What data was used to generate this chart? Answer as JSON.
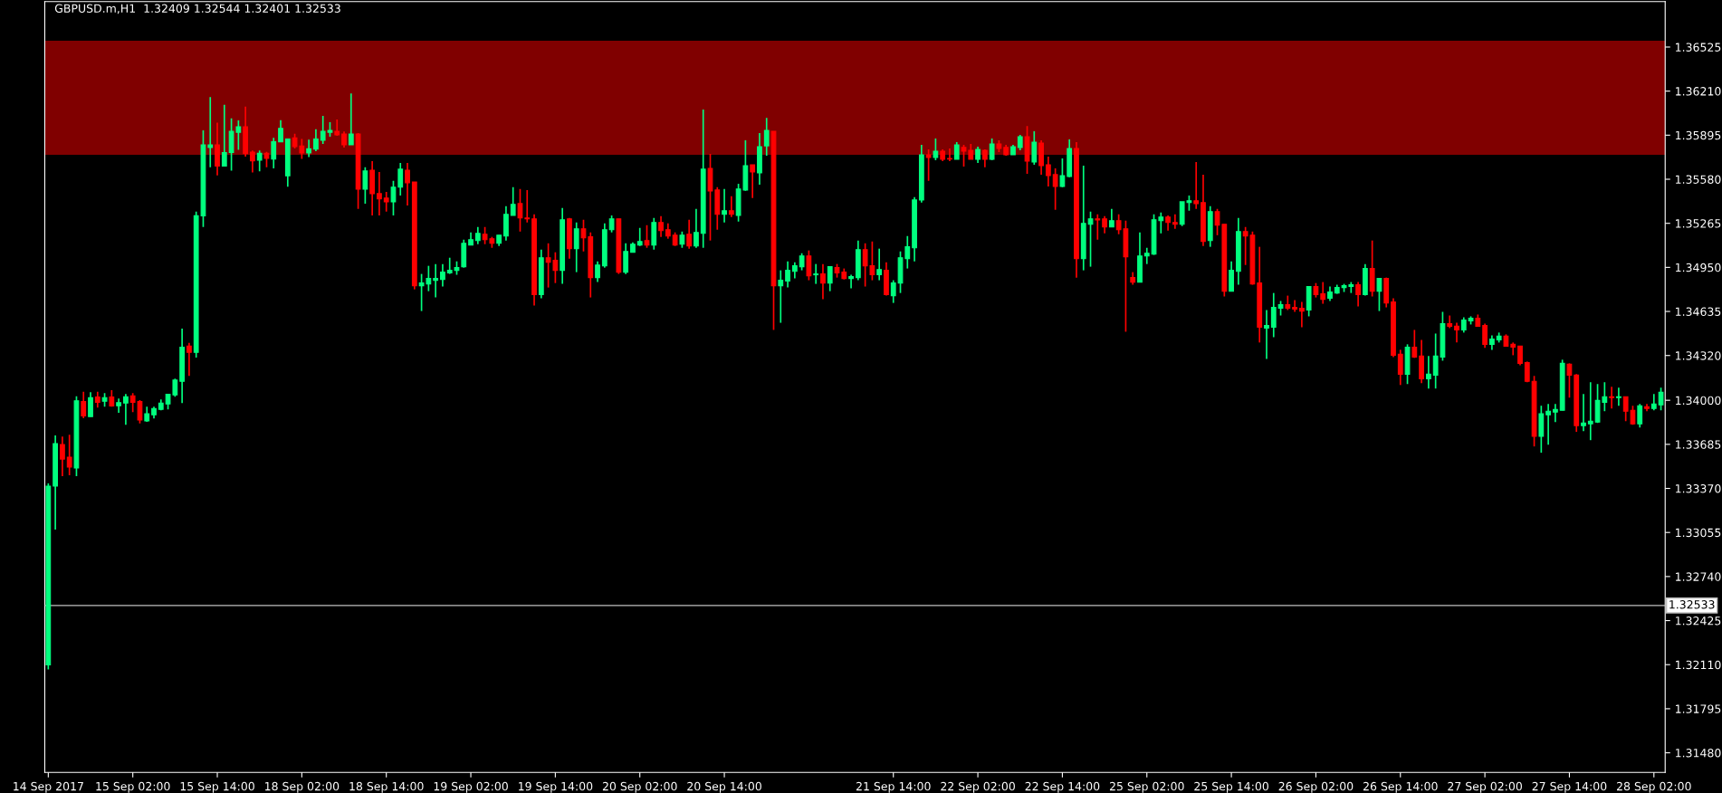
{
  "chart_data": {
    "type": "candlestick",
    "title": "GBPUSD.m,H1  1.32409 1.32544 1.32401 1.32533",
    "categories": [
      "14 Sep 2017",
      null,
      null,
      null,
      null,
      null,
      null,
      null,
      null,
      null,
      null,
      null,
      "15 Sep 02:00",
      null,
      null,
      null,
      null,
      null,
      null,
      null,
      null,
      null,
      null,
      null,
      "15 Sep 14:00",
      null,
      null,
      null,
      null,
      null,
      null,
      null,
      null,
      null,
      null,
      null,
      "18 Sep 02:00",
      null,
      null,
      null,
      null,
      null,
      null,
      null,
      null,
      null,
      null,
      null,
      "18 Sep 14:00",
      null,
      null,
      null,
      null,
      null,
      null,
      null,
      null,
      null,
      null,
      null,
      "19 Sep 02:00",
      null,
      null,
      null,
      null,
      null,
      null,
      null,
      null,
      null,
      null,
      null,
      "19 Sep 14:00",
      null,
      null,
      null,
      null,
      null,
      null,
      null,
      null,
      null,
      null,
      null,
      "20 Sep 02:00",
      null,
      null,
      null,
      null,
      null,
      null,
      null,
      null,
      null,
      null,
      null,
      "20 Sep 14:00",
      null,
      null,
      null,
      null,
      null,
      null,
      null,
      null,
      null,
      null,
      null,
      null,
      null,
      null,
      null,
      null,
      null,
      null,
      null,
      null,
      null,
      null,
      null,
      "21 Sep 14:00",
      null,
      null,
      null,
      null,
      null,
      null,
      null,
      null,
      null,
      null,
      null,
      "22 Sep 02:00",
      null,
      null,
      null,
      null,
      null,
      null,
      null,
      null,
      null,
      null,
      null,
      "22 Sep 14:00",
      null,
      null,
      null,
      null,
      null,
      null,
      null,
      null,
      null,
      null,
      null,
      "25 Sep 02:00",
      null,
      null,
      null,
      null,
      null,
      null,
      null,
      null,
      null,
      null,
      null,
      "25 Sep 14:00",
      null,
      null,
      null,
      null,
      null,
      null,
      null,
      null,
      null,
      null,
      null,
      "26 Sep 02:00",
      null,
      null,
      null,
      null,
      null,
      null,
      null,
      null,
      null,
      null,
      null,
      "26 Sep 14:00",
      null,
      null,
      null,
      null,
      null,
      null,
      null,
      null,
      null,
      null,
      null,
      "27 Sep 02:00",
      null,
      null,
      null,
      null,
      null,
      null,
      null,
      null,
      null,
      null,
      null,
      "27 Sep 14:00",
      null,
      null,
      null,
      null,
      null,
      null,
      null,
      null,
      null,
      null,
      null,
      "28 Sep 02:00",
      null
    ],
    "ohlc": [
      [
        1.32108,
        1.33406,
        1.32076,
        1.33386
      ],
      [
        1.33386,
        1.33748,
        1.33076,
        1.3369
      ],
      [
        1.33683,
        1.33741,
        1.33457,
        1.3358
      ],
      [
        1.33593,
        1.33754,
        1.33464,
        1.33522
      ],
      [
        1.33516,
        1.34028,
        1.33457,
        1.33996
      ],
      [
        1.33991,
        1.34061,
        1.33872,
        1.33888
      ],
      [
        1.33883,
        1.34057,
        1.33883,
        1.34018
      ],
      [
        1.34024,
        1.34061,
        1.33947,
        1.33986
      ],
      [
        1.33993,
        1.34051,
        1.33954,
        1.34019
      ],
      [
        1.34024,
        1.34072,
        1.33954,
        1.33959
      ],
      [
        1.33961,
        1.34012,
        1.3391,
        1.33983
      ],
      [
        1.3398,
        1.34045,
        1.33825,
        1.34025
      ],
      [
        1.34032,
        1.34051,
        1.33915,
        1.33986
      ],
      [
        1.33991,
        1.34001,
        1.33835,
        1.33859
      ],
      [
        1.33853,
        1.33954,
        1.33846,
        1.33903
      ],
      [
        1.33896,
        1.33954,
        1.3387,
        1.33941
      ],
      [
        1.33935,
        1.34006,
        1.33928,
        1.3398
      ],
      [
        1.33974,
        1.34045,
        1.33935,
        1.34042
      ],
      [
        1.34038,
        1.34154,
        1.34025,
        1.34144
      ],
      [
        1.34135,
        1.34512,
        1.3398,
        1.3438
      ],
      [
        1.34387,
        1.34411,
        1.34174,
        1.34343
      ],
      [
        1.34342,
        1.35348,
        1.34305,
        1.35319
      ],
      [
        1.35319,
        1.35929,
        1.35239,
        1.35825
      ],
      [
        1.35807,
        1.36168,
        1.35665,
        1.35825
      ],
      [
        1.35825,
        1.35985,
        1.35607,
        1.35674
      ],
      [
        1.35674,
        1.36112,
        1.35674,
        1.35771
      ],
      [
        1.35771,
        1.36016,
        1.35642,
        1.35922
      ],
      [
        1.35916,
        1.36,
        1.3579,
        1.35955
      ],
      [
        1.35955,
        1.36099,
        1.35742,
        1.35763
      ],
      [
        1.35774,
        1.35785,
        1.35628,
        1.35712
      ],
      [
        1.35717,
        1.35785,
        1.35637,
        1.35766
      ],
      [
        1.35766,
        1.35776,
        1.35665,
        1.3573
      ],
      [
        1.35725,
        1.35876,
        1.35658,
        1.35849
      ],
      [
        1.35847,
        1.36002,
        1.35847,
        1.35944
      ],
      [
        1.35604,
        1.35868,
        1.35526,
        1.35868
      ],
      [
        1.35876,
        1.35905,
        1.358,
        1.35814
      ],
      [
        1.35817,
        1.35868,
        1.35725,
        1.35768
      ],
      [
        1.35768,
        1.35863,
        1.35739,
        1.35798
      ],
      [
        1.35795,
        1.35938,
        1.35781,
        1.35868
      ],
      [
        1.35858,
        1.36033,
        1.35832,
        1.35923
      ],
      [
        1.35916,
        1.35987,
        1.35884,
        1.35929
      ],
      [
        1.35923,
        1.36007,
        1.3589,
        1.35897
      ],
      [
        1.35903,
        1.35921,
        1.35807,
        1.35826
      ],
      [
        1.35826,
        1.36194,
        1.35826,
        1.35903
      ],
      [
        1.35903,
        1.3591,
        1.35368,
        1.3551
      ],
      [
        1.3551,
        1.35666,
        1.35406,
        1.35639
      ],
      [
        1.35645,
        1.3571,
        1.35322,
        1.35477
      ],
      [
        1.35477,
        1.35632,
        1.35322,
        1.35439
      ],
      [
        1.35445,
        1.3549,
        1.35348,
        1.35419
      ],
      [
        1.35419,
        1.35568,
        1.35322,
        1.35523
      ],
      [
        1.35523,
        1.35697,
        1.35464,
        1.35652
      ],
      [
        1.35645,
        1.35697,
        1.35393,
        1.35555
      ],
      [
        1.35561,
        1.35561,
        1.34793,
        1.34819
      ],
      [
        1.34819,
        1.34903,
        1.34638,
        1.34838
      ],
      [
        1.34832,
        1.34961,
        1.3478,
        1.34871
      ],
      [
        1.34858,
        1.34974,
        1.34735,
        1.34871
      ],
      [
        1.34864,
        1.34974,
        1.34813,
        1.34916
      ],
      [
        1.3491,
        1.35019,
        1.34903,
        1.34929
      ],
      [
        1.34929,
        1.34993,
        1.34897,
        1.34948
      ],
      [
        1.34955,
        1.35148,
        1.34948,
        1.35122
      ],
      [
        1.3511,
        1.352,
        1.3511,
        1.35148
      ],
      [
        1.35142,
        1.35239,
        1.35116,
        1.35193
      ],
      [
        1.35187,
        1.35239,
        1.35116,
        1.35148
      ],
      [
        1.35155,
        1.35168,
        1.3509,
        1.35122
      ],
      [
        1.35122,
        1.3518,
        1.35103,
        1.3518
      ],
      [
        1.35174,
        1.35387,
        1.35142,
        1.35329
      ],
      [
        1.35322,
        1.35523,
        1.35322,
        1.354
      ],
      [
        1.35406,
        1.3551,
        1.35206,
        1.35303
      ],
      [
        1.35303,
        1.35503,
        1.35271,
        1.35297
      ],
      [
        1.35297,
        1.35329,
        1.34677,
        1.34755
      ],
      [
        1.34755,
        1.35077,
        1.34729,
        1.35019
      ],
      [
        1.35019,
        1.35122,
        1.34806,
        1.34987
      ],
      [
        1.35,
        1.35058,
        1.34838,
        1.34929
      ],
      [
        1.34929,
        1.35374,
        1.34832,
        1.3529
      ],
      [
        1.35297,
        1.35303,
        1.35013,
        1.35084
      ],
      [
        1.35084,
        1.35271,
        1.34916,
        1.35226
      ],
      [
        1.35226,
        1.3529,
        1.35064,
        1.35161
      ],
      [
        1.35168,
        1.352,
        1.34735,
        1.34877
      ],
      [
        1.34877,
        1.34993,
        1.34845,
        1.34967
      ],
      [
        1.34961,
        1.35264,
        1.34948,
        1.35219
      ],
      [
        1.35219,
        1.35322,
        1.352,
        1.35297
      ],
      [
        1.35297,
        1.35297,
        1.34903,
        1.34916
      ],
      [
        1.34916,
        1.35122,
        1.34903,
        1.35064
      ],
      [
        1.35058,
        1.35129,
        1.35058,
        1.35116
      ],
      [
        1.3511,
        1.35232,
        1.35103,
        1.35135
      ],
      [
        1.35142,
        1.35252,
        1.3509,
        1.3511
      ],
      [
        1.3511,
        1.35303,
        1.35077,
        1.35271
      ],
      [
        1.35271,
        1.35316,
        1.35168,
        1.35213
      ],
      [
        1.35219,
        1.35264,
        1.35155,
        1.35174
      ],
      [
        1.3518,
        1.352,
        1.35103,
        1.3511
      ],
      [
        1.35116,
        1.35206,
        1.3509,
        1.3518
      ],
      [
        1.35187,
        1.3529,
        1.35084,
        1.35103
      ],
      [
        1.35103,
        1.35368,
        1.3509,
        1.352
      ],
      [
        1.35193,
        1.36078,
        1.3509,
        1.35652
      ],
      [
        1.35658,
        1.35761,
        1.35142,
        1.35497
      ],
      [
        1.35503,
        1.35523,
        1.35219,
        1.35329
      ],
      [
        1.35329,
        1.3551,
        1.35271,
        1.35355
      ],
      [
        1.35355,
        1.35458,
        1.3531,
        1.35329
      ],
      [
        1.35322,
        1.35548,
        1.35277,
        1.3551
      ],
      [
        1.35503,
        1.35858,
        1.35497,
        1.35677
      ],
      [
        1.35684,
        1.35684,
        1.35445,
        1.35632
      ],
      [
        1.35626,
        1.3591,
        1.35542,
        1.35813
      ],
      [
        1.35819,
        1.36019,
        1.35748,
        1.35929
      ],
      [
        1.35923,
        1.35923,
        1.34503,
        1.34819
      ],
      [
        1.34819,
        1.34929,
        1.34554,
        1.34858
      ],
      [
        1.34852,
        1.34993,
        1.34806,
        1.34929
      ],
      [
        1.34922,
        1.34987,
        1.34871,
        1.34961
      ],
      [
        1.34955,
        1.35051,
        1.34929,
        1.35032
      ],
      [
        1.35032,
        1.35071,
        1.34858,
        1.3489
      ],
      [
        1.34897,
        1.34974,
        1.34832,
        1.34903
      ],
      [
        1.34903,
        1.34974,
        1.34722,
        1.34838
      ],
      [
        1.34838,
        1.34955,
        1.3478,
        1.34955
      ],
      [
        1.34948,
        1.34974,
        1.34877,
        1.3491
      ],
      [
        1.34916,
        1.34942,
        1.34864,
        1.34871
      ],
      [
        1.34871,
        1.34897,
        1.348,
        1.34884
      ],
      [
        1.34877,
        1.35142,
        1.34858,
        1.35077
      ],
      [
        1.35077,
        1.35122,
        1.34813,
        1.34961
      ],
      [
        1.34961,
        1.35135,
        1.34858,
        1.34897
      ],
      [
        1.34897,
        1.35084,
        1.34858,
        1.34935
      ],
      [
        1.34929,
        1.34987,
        1.34748,
        1.34755
      ],
      [
        1.34748,
        1.34858,
        1.34696,
        1.34838
      ],
      [
        1.34838,
        1.35064,
        1.34767,
        1.35019
      ],
      [
        1.35013,
        1.35174,
        1.34942,
        1.35097
      ],
      [
        1.3509,
        1.35452,
        1.34993,
        1.35432
      ],
      [
        1.35432,
        1.35826,
        1.35413,
        1.35755
      ],
      [
        1.35755,
        1.35794,
        1.35568,
        1.35735
      ],
      [
        1.35735,
        1.35871,
        1.35716,
        1.35781
      ],
      [
        1.35781,
        1.35794,
        1.3571,
        1.35723
      ],
      [
        1.35729,
        1.358,
        1.3571,
        1.35725
      ],
      [
        1.35723,
        1.35845,
        1.35723,
        1.35826
      ],
      [
        1.35807,
        1.35826,
        1.35671,
        1.35781
      ],
      [
        1.35787,
        1.35832,
        1.35723,
        1.35723
      ],
      [
        1.35723,
        1.35813,
        1.35697,
        1.35794
      ],
      [
        1.35787,
        1.35794,
        1.35665,
        1.35723
      ],
      [
        1.35723,
        1.35871,
        1.35716,
        1.35832
      ],
      [
        1.35832,
        1.35858,
        1.35774,
        1.358
      ],
      [
        1.35807,
        1.35826,
        1.35748,
        1.35755
      ],
      [
        1.35755,
        1.35826,
        1.35755,
        1.35813
      ],
      [
        1.35807,
        1.35897,
        1.35787,
        1.35884
      ],
      [
        1.35884,
        1.35961,
        1.35619,
        1.3571
      ],
      [
        1.35703,
        1.35923,
        1.35684,
        1.35845
      ],
      [
        1.35839,
        1.35858,
        1.35613,
        1.35677
      ],
      [
        1.35684,
        1.35742,
        1.35529,
        1.35606
      ],
      [
        1.35613,
        1.35658,
        1.35361,
        1.35529
      ],
      [
        1.35529,
        1.35729,
        1.35523,
        1.35606
      ],
      [
        1.356,
        1.35865,
        1.35594,
        1.358
      ],
      [
        1.358,
        1.35845,
        1.34877,
        1.35013
      ],
      [
        1.35013,
        1.35677,
        1.34929,
        1.35264
      ],
      [
        1.35258,
        1.35348,
        1.34955,
        1.35297
      ],
      [
        1.35297,
        1.35329,
        1.35148,
        1.3529
      ],
      [
        1.35297,
        1.35316,
        1.35193,
        1.35239
      ],
      [
        1.35239,
        1.35368,
        1.35239,
        1.35284
      ],
      [
        1.35284,
        1.35329,
        1.35187,
        1.35219
      ],
      [
        1.35226,
        1.35284,
        1.3449,
        1.35026
      ],
      [
        1.34877,
        1.34916,
        1.34826,
        1.34845
      ],
      [
        1.34845,
        1.352,
        1.34845,
        1.35032
      ],
      [
        1.35032,
        1.3509,
        1.34974,
        1.35051
      ],
      [
        1.35045,
        1.35329,
        1.35039,
        1.3529
      ],
      [
        1.35284,
        1.35342,
        1.35193,
        1.3531
      ],
      [
        1.3531,
        1.35322,
        1.35213,
        1.35271
      ],
      [
        1.35271,
        1.35329,
        1.35226,
        1.35258
      ],
      [
        1.35258,
        1.35419,
        1.35245,
        1.35419
      ],
      [
        1.35413,
        1.35464,
        1.35355,
        1.35426
      ],
      [
        1.35426,
        1.35703,
        1.35368,
        1.35406
      ],
      [
        1.35413,
        1.35613,
        1.35103,
        1.35135
      ],
      [
        1.35142,
        1.35387,
        1.35097,
        1.35348
      ],
      [
        1.35348,
        1.35368,
        1.3518,
        1.35252
      ],
      [
        1.35258,
        1.35258,
        1.34742,
        1.3478
      ],
      [
        1.3478,
        1.34993,
        1.3478,
        1.34929
      ],
      [
        1.34922,
        1.35303,
        1.34826,
        1.35206
      ],
      [
        1.35206,
        1.35239,
        1.34967,
        1.35174
      ],
      [
        1.3518,
        1.35206,
        1.34826,
        1.34832
      ],
      [
        1.34838,
        1.35097,
        1.34413,
        1.34522
      ],
      [
        1.34516,
        1.34645,
        1.34296,
        1.34535
      ],
      [
        1.34522,
        1.34767,
        1.34451,
        1.34664
      ],
      [
        1.34658,
        1.3471,
        1.34606,
        1.34684
      ],
      [
        1.34684,
        1.34748,
        1.34645,
        1.34658
      ],
      [
        1.34664,
        1.34716,
        1.34632,
        1.34651
      ],
      [
        1.34658,
        1.34703,
        1.34522,
        1.34638
      ],
      [
        1.34645,
        1.34813,
        1.346,
        1.34813
      ],
      [
        1.34813,
        1.34838,
        1.34735,
        1.34755
      ],
      [
        1.34761,
        1.34845,
        1.3469,
        1.34722
      ],
      [
        1.34729,
        1.34813,
        1.3471,
        1.34774
      ],
      [
        1.34767,
        1.34826,
        1.34761,
        1.34806
      ],
      [
        1.34806,
        1.34832,
        1.34774,
        1.34819
      ],
      [
        1.34813,
        1.34845,
        1.34767,
        1.34826
      ],
      [
        1.34826,
        1.34845,
        1.34671,
        1.34755
      ],
      [
        1.34755,
        1.34974,
        1.34748,
        1.34942
      ],
      [
        1.34942,
        1.35142,
        1.34742,
        1.3478
      ],
      [
        1.3478,
        1.34871,
        1.34638,
        1.34871
      ],
      [
        1.34871,
        1.34877,
        1.34664,
        1.34696
      ],
      [
        1.34703,
        1.34729,
        1.34309,
        1.34322
      ],
      [
        1.34329,
        1.34361,
        1.34109,
        1.34186
      ],
      [
        1.34186,
        1.344,
        1.34116,
        1.3438
      ],
      [
        1.3438,
        1.34503,
        1.34303,
        1.34309
      ],
      [
        1.34316,
        1.34432,
        1.34122,
        1.34154
      ],
      [
        1.34154,
        1.34316,
        1.34084,
        1.34186
      ],
      [
        1.3418,
        1.34477,
        1.34084,
        1.34316
      ],
      [
        1.34309,
        1.34632,
        1.34283,
        1.34548
      ],
      [
        1.34548,
        1.34606,
        1.34516,
        1.34529
      ],
      [
        1.34529,
        1.34554,
        1.34413,
        1.34503
      ],
      [
        1.34503,
        1.34593,
        1.34484,
        1.34574
      ],
      [
        1.34567,
        1.346,
        1.34542,
        1.34587
      ],
      [
        1.34587,
        1.34613,
        1.34529,
        1.34529
      ],
      [
        1.34535,
        1.34548,
        1.34374,
        1.344
      ],
      [
        1.344,
        1.34464,
        1.34361,
        1.34438
      ],
      [
        1.34432,
        1.34484,
        1.34413,
        1.34458
      ],
      [
        1.34458,
        1.34471,
        1.34387,
        1.34387
      ],
      [
        1.344,
        1.34413,
        1.34322,
        1.3438
      ],
      [
        1.34387,
        1.34387,
        1.34251,
        1.34264
      ],
      [
        1.3427,
        1.34277,
        1.34129,
        1.34135
      ],
      [
        1.34135,
        1.34174,
        1.3367,
        1.33742
      ],
      [
        1.33742,
        1.33961,
        1.33625,
        1.33903
      ],
      [
        1.33896,
        1.33974,
        1.33683,
        1.33922
      ],
      [
        1.33916,
        1.33974,
        1.33844,
        1.33935
      ],
      [
        1.33928,
        1.3429,
        1.33928,
        1.34264
      ],
      [
        1.34258,
        1.34264,
        1.34019,
        1.3418
      ],
      [
        1.3418,
        1.34187,
        1.33774,
        1.33819
      ],
      [
        1.33819,
        1.34045,
        1.3378,
        1.33838
      ],
      [
        1.33832,
        1.34129,
        1.33715,
        1.33851
      ],
      [
        1.33844,
        1.34116,
        1.33838,
        1.33999
      ],
      [
        1.33986,
        1.34129,
        1.33922,
        1.34025
      ],
      [
        1.34025,
        1.34096,
        1.33941,
        1.34019
      ],
      [
        1.34019,
        1.3409,
        1.33961,
        1.34025
      ],
      [
        1.34025,
        1.34025,
        1.33851,
        1.33922
      ],
      [
        1.33928,
        1.33961,
        1.33825,
        1.33832
      ],
      [
        1.33832,
        1.33974,
        1.33806,
        1.33961
      ],
      [
        1.33954,
        1.33974,
        1.33922,
        1.33941
      ],
      [
        1.33941,
        1.34045,
        1.33928,
        1.33974
      ],
      [
        1.33967,
        1.3409,
        1.33928,
        1.34057
      ]
    ],
    "colors": [
      "#00ff7f",
      "#00ff7f",
      "#ff0000",
      "#ff0000",
      "#00ff7f",
      "#ff0000",
      "#00ff7f",
      "#ff0000",
      "#00ff7f",
      "#ff0000",
      "#00ff7f",
      "#00ff7f",
      "#ff0000",
      "#ff0000",
      "#00ff7f",
      "#00ff7f",
      "#00ff7f",
      "#00ff7f",
      "#00ff7f",
      "#00ff7f",
      "#ff0000",
      "#00ff7f",
      "#00ff7f",
      "#00ff7f",
      "#ff0000",
      "#00ff7f",
      "#00ff7f",
      "#00ff7f",
      "#ff0000",
      "#ff0000",
      "#00ff7f",
      "#ff0000",
      "#00ff7f",
      "#00ff7f",
      "#00ff7f",
      "#ff0000",
      "#ff0000",
      "#00ff7f",
      "#00ff7f",
      "#00ff7f",
      "#00ff7f",
      "#ff0000",
      "#ff0000",
      "#00ff7f",
      "#ff0000",
      "#00ff7f",
      "#ff0000",
      "#ff0000",
      "#ff0000",
      "#00ff7f",
      "#00ff7f",
      "#ff0000",
      "#ff0000",
      "#00ff7f",
      "#00ff7f",
      "#00ff7f",
      "#00ff7f",
      "#00ff7f",
      "#00ff7f",
      "#00ff7f",
      "#00ff7f",
      "#00ff7f",
      "#ff0000",
      "#ff0000",
      "#00ff7f",
      "#00ff7f",
      "#00ff7f",
      "#ff0000",
      "#ff0000",
      "#ff0000",
      "#00ff7f",
      "#ff0000",
      "#ff0000",
      "#00ff7f",
      "#ff0000",
      "#00ff7f",
      "#ff0000",
      "#ff0000",
      "#00ff7f",
      "#00ff7f",
      "#00ff7f",
      "#ff0000",
      "#00ff7f",
      "#00ff7f",
      "#00ff7f",
      "#ff0000",
      "#00ff7f",
      "#ff0000",
      "#ff0000",
      "#ff0000",
      "#00ff7f",
      "#ff0000",
      "#00ff7f",
      "#00ff7f",
      "#ff0000",
      "#ff0000",
      "#00ff7f",
      "#ff0000",
      "#00ff7f",
      "#00ff7f",
      "#ff0000",
      "#00ff7f",
      "#00ff7f",
      "#ff0000",
      "#00ff7f",
      "#00ff7f",
      "#00ff7f",
      "#00ff7f",
      "#ff0000",
      "#00ff7f",
      "#ff0000",
      "#00ff7f",
      "#ff0000",
      "#ff0000",
      "#00ff7f",
      "#00ff7f",
      "#ff0000",
      "#ff0000",
      "#00ff7f",
      "#ff0000",
      "#00ff7f",
      "#00ff7f",
      "#00ff7f",
      "#00ff7f",
      "#00ff7f",
      "#ff0000",
      "#00ff7f",
      "#ff0000",
      "#ff0000",
      "#00ff7f",
      "#ff0000",
      "#ff0000",
      "#00ff7f",
      "#ff0000",
      "#00ff7f",
      "#ff0000",
      "#ff0000",
      "#00ff7f",
      "#00ff7f",
      "#ff0000",
      "#00ff7f",
      "#ff0000",
      "#ff0000",
      "#ff0000",
      "#00ff7f",
      "#00ff7f",
      "#ff0000",
      "#00ff7f",
      "#00ff7f",
      "#ff0000",
      "#ff0000",
      "#00ff7f",
      "#ff0000",
      "#ff0000",
      "#ff0000",
      "#00ff7f",
      "#00ff7f",
      "#00ff7f",
      "#00ff7f",
      "#ff0000",
      "#ff0000",
      "#00ff7f",
      "#00ff7f",
      "#ff0000",
      "#ff0000",
      "#00ff7f",
      "#ff0000",
      "#ff0000",
      "#00ff7f",
      "#00ff7f",
      "#ff0000",
      "#ff0000",
      "#ff0000",
      "#00ff7f",
      "#00ff7f",
      "#00ff7f",
      "#ff0000",
      "#ff0000",
      "#ff0000",
      "#00ff7f",
      "#ff0000",
      "#ff0000",
      "#00ff7f",
      "#00ff7f",
      "#00ff7f",
      "#00ff7f",
      "#ff0000",
      "#00ff7f",
      "#ff0000",
      "#00ff7f",
      "#ff0000",
      "#ff0000",
      "#ff0000",
      "#00ff7f",
      "#ff0000",
      "#ff0000",
      "#00ff7f",
      "#00ff7f",
      "#00ff7f",
      "#ff0000",
      "#ff0000",
      "#00ff7f",
      "#00ff7f",
      "#ff0000",
      "#ff0000",
      "#00ff7f",
      "#00ff7f",
      "#ff0000",
      "#ff0000",
      "#ff0000",
      "#ff0000",
      "#ff0000",
      "#00ff7f",
      "#00ff7f",
      "#00ff7f",
      "#00ff7f",
      "#ff0000",
      "#ff0000",
      "#00ff7f",
      "#00ff7f",
      "#00ff7f",
      "#00ff7f",
      "#ff0000",
      "#00ff7f",
      "#ff0000",
      "#ff0000",
      "#00ff7f",
      "#ff0000",
      "#00ff7f",
      "#00ff7f"
    ],
    "ylim": [
      1.3134,
      1.3685
    ],
    "yticks": [
      {
        "value": 1.36525,
        "label": "1.36525"
      },
      {
        "value": 1.3621,
        "label": "1.36210"
      },
      {
        "value": 1.35895,
        "label": "1.35895"
      },
      {
        "value": 1.3558,
        "label": "1.35580"
      },
      {
        "value": 1.35265,
        "label": "1.35265"
      },
      {
        "value": 1.3495,
        "label": "1.34950"
      },
      {
        "value": 1.34635,
        "label": "1.34635"
      },
      {
        "value": 1.3432,
        "label": "1.34320"
      },
      {
        "value": 1.34,
        "label": "1.34000"
      },
      {
        "value": 1.33685,
        "label": "1.33685"
      },
      {
        "value": 1.3337,
        "label": "1.33370"
      },
      {
        "value": 1.33055,
        "label": "1.33055"
      },
      {
        "value": 1.3274,
        "label": "1.32740"
      },
      {
        "value": 1.32425,
        "label": "1.32425"
      },
      {
        "value": 1.3211,
        "label": "1.32110"
      },
      {
        "value": 1.31795,
        "label": "1.31795"
      },
      {
        "value": 1.3148,
        "label": "1.31480"
      }
    ],
    "ref_lines": [
      {
        "axis": "y",
        "value": 1.32533,
        "label": "1.32533",
        "color": "#c0c0c0"
      }
    ],
    "bands": [
      {
        "axis": "y",
        "from": 1.35755,
        "to": 1.3657,
        "color": "#800000"
      }
    ]
  }
}
